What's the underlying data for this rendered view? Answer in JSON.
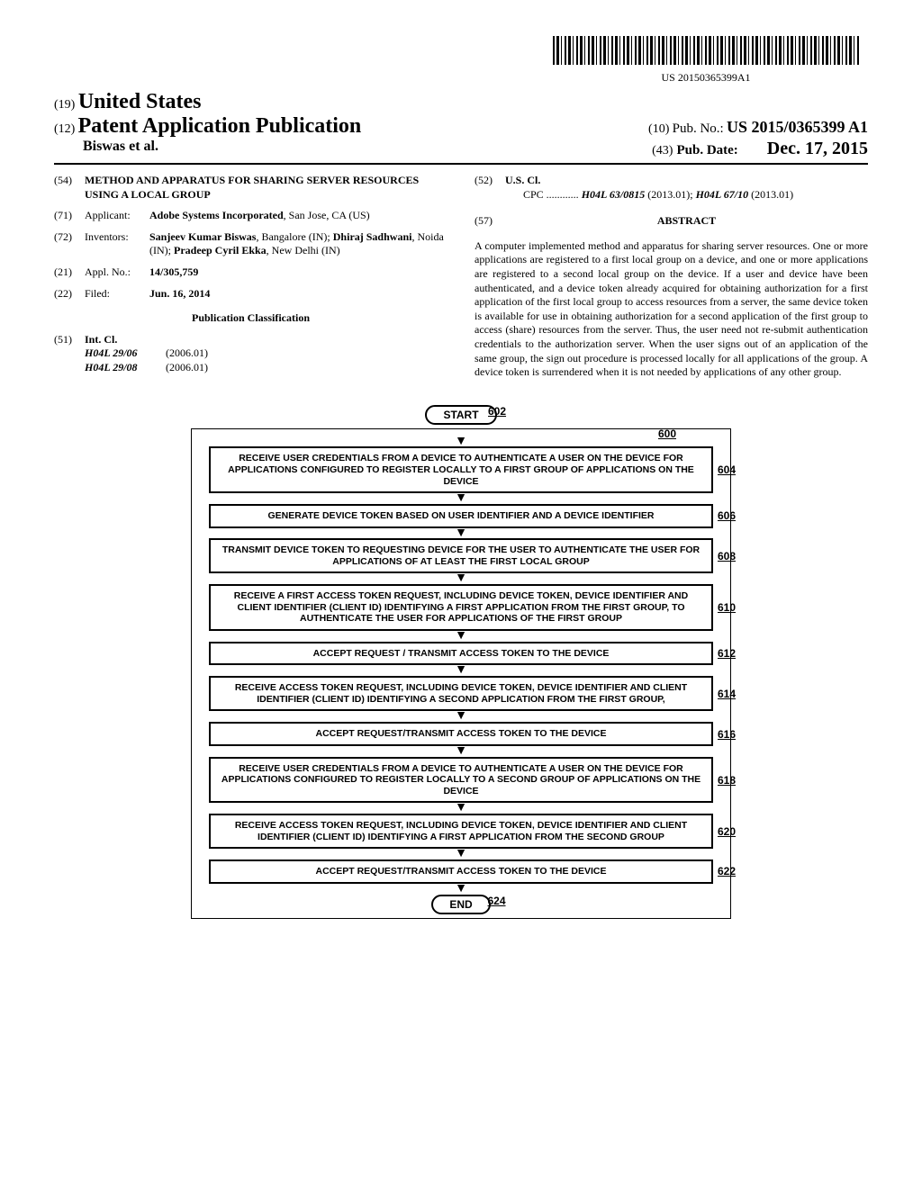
{
  "barcode_text": "US 20150365399A1",
  "header": {
    "code19": "(19)",
    "country": "United States",
    "code12": "(12)",
    "pub_type": "Patent Application Publication",
    "authors": "Biswas et al.",
    "code10": "(10)",
    "pubno_label": "Pub. No.:",
    "pubno": "US 2015/0365399 A1",
    "code43": "(43)",
    "pubdate_label": "Pub. Date:",
    "pubdate": "Dec. 17, 2015"
  },
  "left": {
    "f54": {
      "code": "(54)",
      "title": "METHOD AND APPARATUS FOR SHARING SERVER RESOURCES USING A LOCAL GROUP"
    },
    "f71": {
      "code": "(71)",
      "label": "Applicant:",
      "content_bold": "Adobe Systems Incorporated",
      "content_rest": ", San Jose, CA (US)"
    },
    "f72": {
      "code": "(72)",
      "label": "Inventors:",
      "i1b": "Sanjeev Kumar Biswas",
      "i1r": ", Bangalore (IN); ",
      "i2b": "Dhiraj Sadhwani",
      "i2r": ", Noida (IN); ",
      "i3b": "Pradeep Cyril Ekka",
      "i3r": ", New Delhi (IN)"
    },
    "f21": {
      "code": "(21)",
      "label": "Appl. No.:",
      "value": "14/305,759"
    },
    "f22": {
      "code": "(22)",
      "label": "Filed:",
      "value": "Jun. 16, 2014"
    },
    "pubclass": "Publication Classification",
    "f51": {
      "code": "(51)",
      "label": "Int. Cl.",
      "r1c": "H04L 29/06",
      "r1y": "(2006.01)",
      "r2c": "H04L 29/08",
      "r2y": "(2006.01)"
    }
  },
  "right": {
    "f52": {
      "code": "(52)",
      "label": "U.S. Cl.",
      "cpc_label": "CPC ............",
      "c1": "H04L 63/0815",
      "c1y": "(2013.01); ",
      "c2": "H04L 67/10",
      "c2y": "(2013.01)"
    },
    "f57": {
      "code": "(57)",
      "title": "ABSTRACT"
    },
    "abstract": "A computer implemented method and apparatus for sharing server resources. One or more applications are registered to a first local group on a device, and one or more applications are registered to a second local group on the device. If a user and device have been authenticated, and a device token already acquired for obtaining authorization for a first application of the first local group to access resources from a server, the same device token is available for use in obtaining authorization for a second application of the first group to access (share) resources from the server. Thus, the user need not re-submit authentication credentials to the authorization server. When the user signs out of an application of the same group, the sign out procedure is processed locally for all applications of the group. A device token is surrendered when it is not needed by applications of any other group."
  },
  "flowchart": {
    "fig_num": "600",
    "start": "START",
    "start_num": "602",
    "end": "END",
    "end_num": "624",
    "steps": [
      {
        "num": "604",
        "text": "RECEIVE USER CREDENTIALS FROM A DEVICE TO AUTHENTICATE A USER ON THE DEVICE FOR APPLICATIONS CONFIGURED TO REGISTER LOCALLY TO A FIRST GROUP OF APPLICATIONS ON THE DEVICE"
      },
      {
        "num": "606",
        "text": "GENERATE DEVICE TOKEN BASED ON USER IDENTIFIER AND A DEVICE IDENTIFIER"
      },
      {
        "num": "608",
        "text": "TRANSMIT DEVICE TOKEN TO REQUESTING DEVICE FOR THE USER TO AUTHENTICATE THE USER FOR APPLICATIONS OF AT LEAST THE FIRST LOCAL GROUP"
      },
      {
        "num": "610",
        "text": "RECEIVE A FIRST ACCESS TOKEN REQUEST, INCLUDING DEVICE TOKEN, DEVICE IDENTIFIER AND CLIENT IDENTIFIER (CLIENT ID) IDENTIFYING A FIRST APPLICATION FROM THE FIRST GROUP, TO AUTHENTICATE THE USER FOR APPLICATIONS OF THE FIRST GROUP"
      },
      {
        "num": "612",
        "text": "ACCEPT REQUEST / TRANSMIT ACCESS TOKEN TO THE DEVICE"
      },
      {
        "num": "614",
        "text": "RECEIVE ACCESS TOKEN REQUEST, INCLUDING DEVICE TOKEN, DEVICE IDENTIFIER AND CLIENT IDENTIFIER (CLIENT ID) IDENTIFYING A SECOND APPLICATION FROM THE FIRST GROUP,"
      },
      {
        "num": "616",
        "text": "ACCEPT REQUEST/TRANSMIT ACCESS TOKEN TO THE DEVICE"
      },
      {
        "num": "618",
        "text": "RECEIVE USER CREDENTIALS FROM A DEVICE TO AUTHENTICATE A USER ON THE DEVICE FOR APPLICATIONS CONFIGURED TO REGISTER LOCALLY TO A SECOND GROUP OF APPLICATIONS ON THE DEVICE"
      },
      {
        "num": "620",
        "text": "RECEIVE ACCESS TOKEN REQUEST, INCLUDING DEVICE TOKEN, DEVICE IDENTIFIER AND CLIENT IDENTIFIER (CLIENT ID) IDENTIFYING A FIRST APPLICATION FROM THE SECOND GROUP"
      },
      {
        "num": "622",
        "text": "ACCEPT REQUEST/TRANSMIT ACCESS TOKEN TO THE DEVICE"
      }
    ]
  }
}
